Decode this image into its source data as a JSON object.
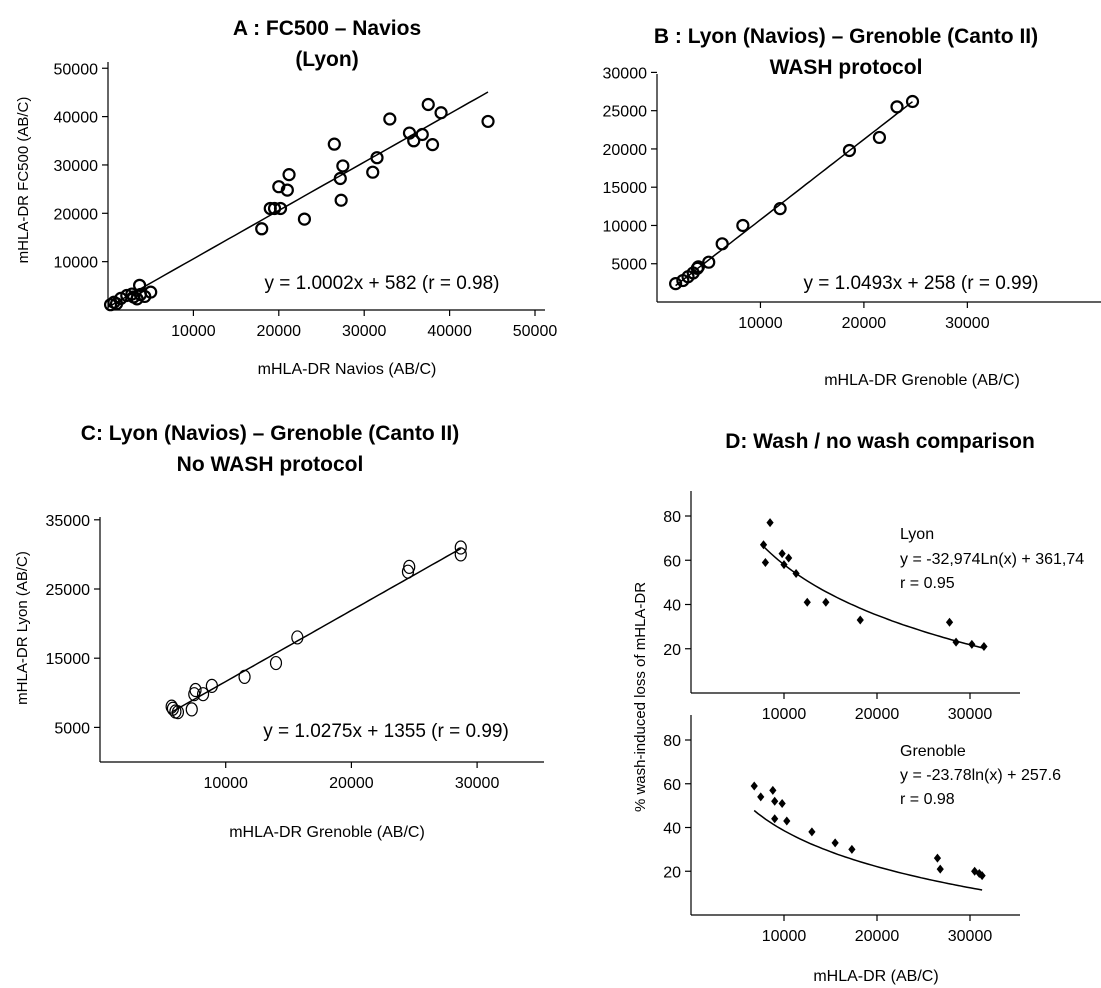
{
  "chart_data": [
    {
      "type": "scatter",
      "title": "A : FC500 – Navios",
      "subtitle": "(Lyon)",
      "xlabel": "mHLA-DR Navios (AB/C)",
      "ylabel": "mHLA-DR  FC500 (AB/C)",
      "xlim": [
        0,
        50000
      ],
      "ylim": [
        0,
        50000
      ],
      "xticks": [
        10000,
        20000,
        30000,
        40000,
        50000
      ],
      "yticks": [
        10000,
        20000,
        30000,
        40000,
        50000
      ],
      "equation": "y = 1.0002x + 582 (r = 0.98)",
      "fit": {
        "kind": "linear",
        "slope": 1.0002,
        "intercept": 582,
        "x_range": [
          0,
          44500
        ]
      },
      "points": [
        [
          300,
          1100
        ],
        [
          700,
          1600
        ],
        [
          1000,
          1300
        ],
        [
          1500,
          2400
        ],
        [
          2200,
          3000
        ],
        [
          2800,
          3300
        ],
        [
          3000,
          2700
        ],
        [
          3400,
          2300
        ],
        [
          3800,
          3200
        ],
        [
          3700,
          5100
        ],
        [
          4300,
          2800
        ],
        [
          5000,
          3700
        ],
        [
          18000,
          16800
        ],
        [
          19000,
          21000
        ],
        [
          19500,
          21000
        ],
        [
          20000,
          25500
        ],
        [
          20200,
          21000
        ],
        [
          21000,
          24800
        ],
        [
          21200,
          28000
        ],
        [
          23000,
          18800
        ],
        [
          26500,
          34300
        ],
        [
          27200,
          27200
        ],
        [
          27500,
          29800
        ],
        [
          27300,
          22700
        ],
        [
          31000,
          28500
        ],
        [
          31500,
          31500
        ],
        [
          33000,
          39500
        ],
        [
          35300,
          36600
        ],
        [
          35800,
          35000
        ],
        [
          36800,
          36300
        ],
        [
          37500,
          42500
        ],
        [
          38000,
          34200
        ],
        [
          39000,
          40800
        ],
        [
          44500,
          39000
        ]
      ]
    },
    {
      "type": "scatter",
      "title": "B : Lyon (Navios) – Grenoble (Canto II)",
      "subtitle": "WASH protocol",
      "xlabel": "mHLA-DR Grenoble (AB/C)",
      "ylabel": "",
      "xlim": [
        0,
        30000
      ],
      "ylim": [
        0,
        30000
      ],
      "xticks": [
        10000,
        20000,
        30000
      ],
      "yticks": [
        5000,
        10000,
        15000,
        20000,
        25000,
        30000
      ],
      "equation": "y = 1.0493x + 258 (r = 0.99)",
      "fit": {
        "kind": "linear",
        "slope": 1.0493,
        "intercept": 258,
        "x_range": [
          1800,
          24700
        ]
      },
      "points": [
        [
          1800,
          2400
        ],
        [
          2500,
          2800
        ],
        [
          3000,
          3300
        ],
        [
          3500,
          3800
        ],
        [
          3900,
          4400
        ],
        [
          4000,
          4600
        ],
        [
          5000,
          5200
        ],
        [
          6300,
          7600
        ],
        [
          8300,
          10000
        ],
        [
          11900,
          12200
        ],
        [
          18600,
          19800
        ],
        [
          21500,
          21500
        ],
        [
          23200,
          25500
        ],
        [
          24700,
          26200
        ]
      ]
    },
    {
      "type": "scatter",
      "title": "C: Lyon (Navios) – Grenoble (Canto II)",
      "subtitle": "No WASH protocol",
      "xlabel": "mHLA-DR Grenoble (AB/C)",
      "ylabel": "mHLA-DR  Lyon (AB/C)",
      "xlim": [
        0,
        35000
      ],
      "ylim": [
        0,
        35000
      ],
      "xticks": [
        10000,
        20000,
        30000
      ],
      "yticks": [
        5000,
        15000,
        25000,
        35000
      ],
      "equation": "y = 1.0275x + 1355 (r = 0.99)",
      "fit": {
        "kind": "linear",
        "slope": 1.0275,
        "intercept": 1355,
        "x_range": [
          5700,
          28700
        ]
      },
      "points": [
        [
          5700,
          8000
        ],
        [
          5800,
          7700
        ],
        [
          6000,
          7300
        ],
        [
          6200,
          7200
        ],
        [
          7300,
          7600
        ],
        [
          7500,
          9800
        ],
        [
          7600,
          10400
        ],
        [
          8200,
          9800
        ],
        [
          8900,
          11000
        ],
        [
          11500,
          12300
        ],
        [
          14000,
          14300
        ],
        [
          15700,
          18000
        ],
        [
          24500,
          27500
        ],
        [
          24600,
          28200
        ],
        [
          28700,
          30000
        ],
        [
          28700,
          31000
        ]
      ]
    },
    {
      "type": "scatter",
      "title": "D: Wash / no wash comparison",
      "xlabel": "mHLA-DR (AB/C)",
      "ylabel": "% wash-induced loss of mHLA-DR",
      "panels": [
        {
          "name": "Lyon",
          "equation": "y = -32,974Ln(x) + 361,74",
          "r": "r = 0.95",
          "fit": {
            "kind": "log",
            "a": -32.974,
            "b": 361.74,
            "x_range": [
              7800,
              31500
            ]
          },
          "xlim": [
            0,
            35000
          ],
          "ylim": [
            0,
            90
          ],
          "xticks": [
            10000,
            20000,
            30000
          ],
          "yticks": [
            20,
            40,
            60,
            80
          ],
          "points": [
            [
              7800,
              67
            ],
            [
              8000,
              59
            ],
            [
              8500,
              77
            ],
            [
              9800,
              63
            ],
            [
              10000,
              58
            ],
            [
              10500,
              61
            ],
            [
              11300,
              54
            ],
            [
              12500,
              41
            ],
            [
              14500,
              41
            ],
            [
              18200,
              33
            ],
            [
              27800,
              32
            ],
            [
              28500,
              23
            ],
            [
              30200,
              22
            ],
            [
              31500,
              21
            ]
          ]
        },
        {
          "name": "Grenoble",
          "equation": "y = -23.78ln(x) + 257.6",
          "r": "r = 0.98",
          "fit": {
            "kind": "log",
            "a": -23.78,
            "b": 257.6,
            "x_range": [
              6800,
              31300
            ]
          },
          "xlim": [
            0,
            35000
          ],
          "ylim": [
            0,
            90
          ],
          "xticks": [
            10000,
            20000,
            30000
          ],
          "yticks": [
            20,
            40,
            60,
            80
          ],
          "points": [
            [
              6800,
              59
            ],
            [
              7500,
              54
            ],
            [
              8800,
              57
            ],
            [
              9000,
              52
            ],
            [
              9000,
              44
            ],
            [
              9800,
              51
            ],
            [
              10300,
              43
            ],
            [
              13000,
              38
            ],
            [
              15500,
              33
            ],
            [
              17300,
              30
            ],
            [
              26500,
              26
            ],
            [
              26800,
              21
            ],
            [
              30500,
              20
            ],
            [
              31000,
              19
            ],
            [
              31300,
              18
            ]
          ]
        }
      ]
    }
  ]
}
